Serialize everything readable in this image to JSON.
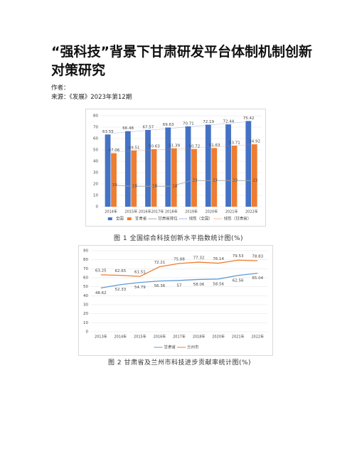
{
  "header": {
    "title": "“强科技”背景下甘肃研发平台体制机制创新对策研究",
    "author": "作者：",
    "source": "来源：《发展》2023年第12期"
  },
  "chart_data": [
    {
      "type": "bar",
      "caption": "图 1  全国综合科技创新水平指数统计图(%)",
      "categories": [
        "2014年",
        "2015年",
        "2016年2017年",
        "2018年",
        "2019年",
        "2020年",
        "2021年",
        "2022年"
      ],
      "series": [
        {
          "name": "全国",
          "color": "#4472c4",
          "values": [
            63.55,
            66.48,
            67.57,
            69.63,
            70.71,
            72.19,
            72.44,
            75.42
          ]
        },
        {
          "name": "甘肃省",
          "color": "#ed7d31",
          "values": [
            47.06,
            49.51,
            50.63,
            51.39,
            50.72,
            51.63,
            53.71,
            54.92
          ]
        },
        {
          "name": "甘肃省排位",
          "color": "#a5a5a5",
          "type": "line",
          "values": [
            19,
            18,
            18,
            18,
            23,
            23,
            23,
            23
          ]
        }
      ],
      "trendlines": [
        {
          "name": "线性（全国）",
          "color": "#4472c4"
        },
        {
          "name": "线性（甘肃省）",
          "color": "#ed7d31"
        }
      ],
      "ylim": [
        0,
        80
      ],
      "yticks": [
        0,
        10,
        20,
        30,
        40,
        50,
        60,
        70,
        80
      ],
      "grid": true,
      "legend": "bottom"
    },
    {
      "type": "line",
      "caption": "图 2  甘肃省及兰州市科技进步贡献率统计图(%)",
      "categories": [
        "2013年",
        "2014年",
        "2015年",
        "2016年",
        "2017年",
        "2018年",
        "2020年",
        "2021年",
        "2022年"
      ],
      "series": [
        {
          "name": "甘肃省",
          "color": "#5b9bd5",
          "values": [
            48.62,
            52.33,
            54.79,
            56.36,
            57,
            58.06,
            58.56,
            62.56,
            65.04
          ]
        },
        {
          "name": "兰州市",
          "color": "#ed7d31",
          "values": [
            63.25,
            62.65,
            61.51,
            72.21,
            75.88,
            77.32,
            76.14,
            79.53,
            78.83
          ]
        }
      ],
      "ylim": [
        0,
        90
      ],
      "yticks": [
        0,
        10,
        20,
        30,
        40,
        50,
        60,
        70,
        80,
        90
      ],
      "grid": true,
      "legend": "bottom"
    }
  ]
}
